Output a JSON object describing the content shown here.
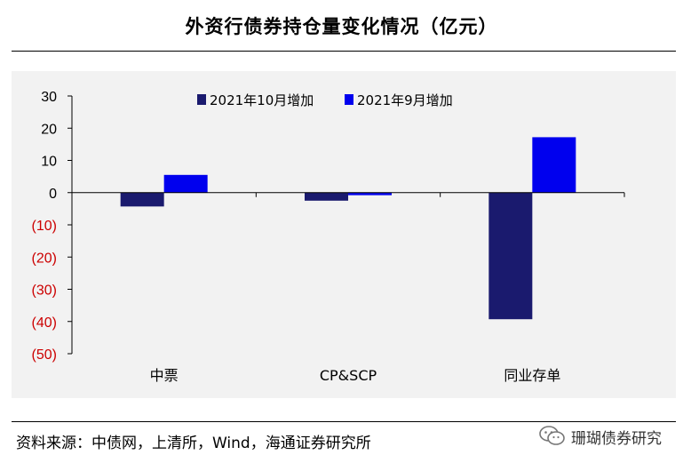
{
  "title": "外资行债券持仓量变化情况（亿元）",
  "source": "资料来源：中债网，上清所，Wind，海通证券研究所",
  "watermark": {
    "text": "珊瑚债券研究",
    "icon": "wechat-icon"
  },
  "chart_data": {
    "type": "bar",
    "categories": [
      "中票",
      "CP&SCP",
      "同业存单"
    ],
    "series": [
      {
        "name": "2021年10月增加",
        "values": [
          -4.3,
          -2.5,
          -39.3
        ],
        "color": "#1a1a6e"
      },
      {
        "name": "2021年9月增加",
        "values": [
          5.5,
          -0.8,
          17.2
        ],
        "color": "#0000ee"
      }
    ],
    "ylim": [
      -50,
      30
    ],
    "yticks": [
      30,
      20,
      10,
      0,
      -10,
      -20,
      -30,
      -40,
      -50
    ],
    "ytick_labels": [
      "30",
      "20",
      "10",
      "0",
      "(10)",
      "(20)",
      "(30)",
      "(40)",
      "(50)"
    ],
    "negative_tick_color": "#cc0000",
    "legend_position": "top-center",
    "grid": false
  }
}
